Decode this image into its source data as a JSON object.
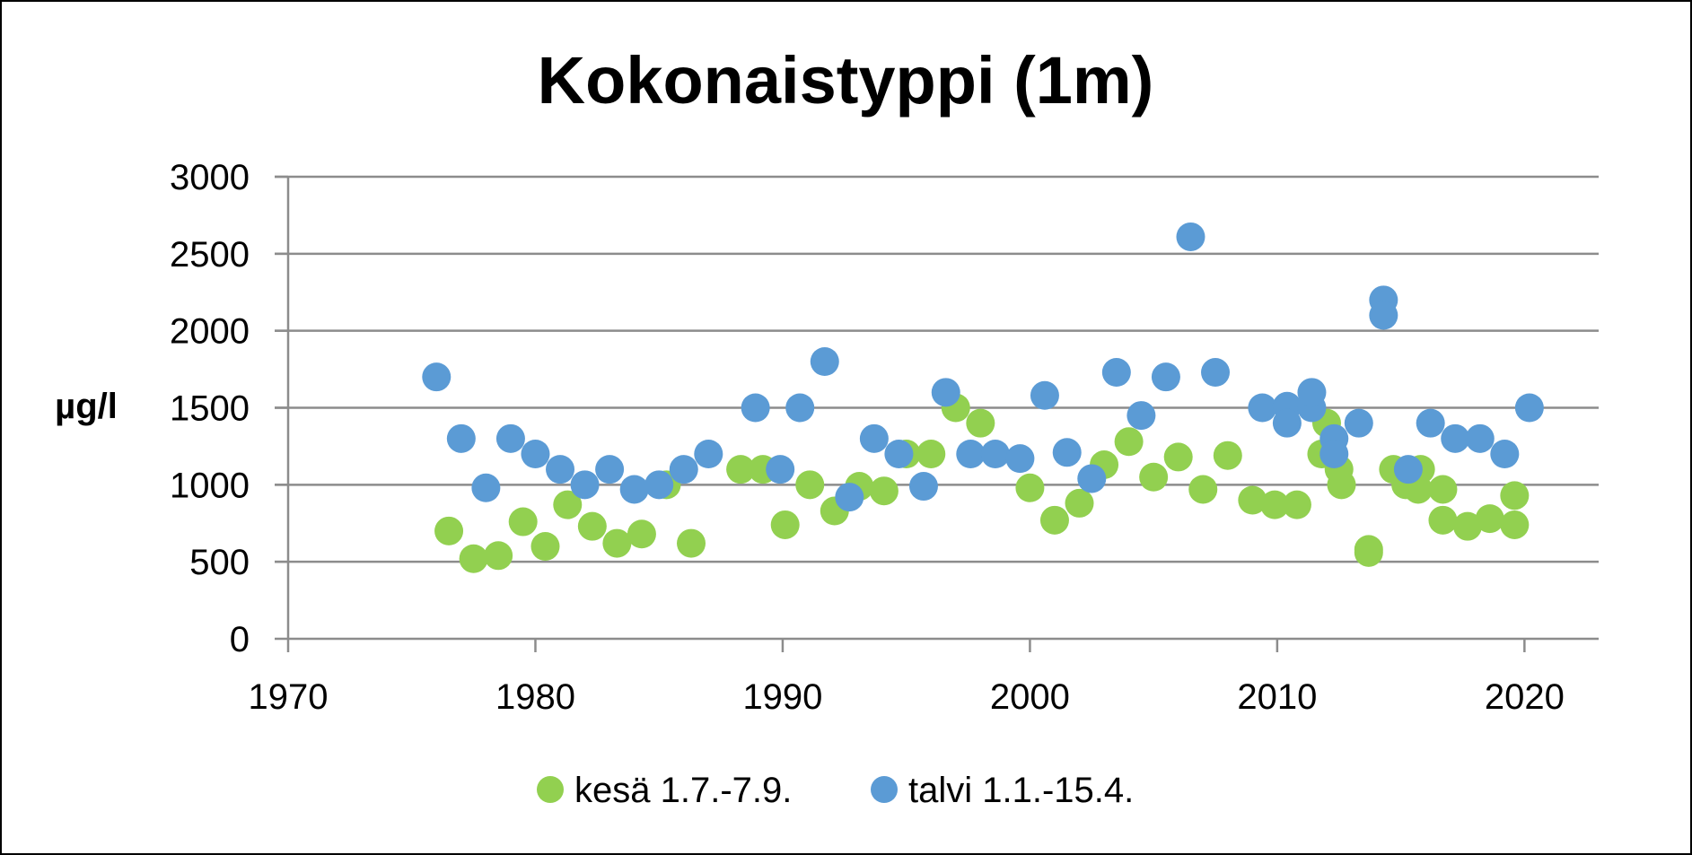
{
  "chart_data": {
    "type": "scatter",
    "title": "Kokonaistyppi (1m)",
    "xlabel": "",
    "ylabel": "µg/l",
    "xlim": [
      1970,
      2023
    ],
    "ylim": [
      0,
      3000
    ],
    "x_ticks": [
      1970,
      1980,
      1990,
      2000,
      2010,
      2020
    ],
    "y_ticks": [
      0,
      500,
      1000,
      1500,
      2000,
      2500,
      3000
    ],
    "grid": "horizontal",
    "legend_position": "bottom",
    "series": [
      {
        "name": "kesä 1.7.-7.9.",
        "color": "#92D050",
        "points": [
          [
            1976.5,
            700
          ],
          [
            1977.5,
            520
          ],
          [
            1978.5,
            540
          ],
          [
            1979.5,
            760
          ],
          [
            1980.4,
            600
          ],
          [
            1981.3,
            870
          ],
          [
            1982.3,
            730
          ],
          [
            1983.3,
            620
          ],
          [
            1984.3,
            680
          ],
          [
            1985.3,
            1000
          ],
          [
            1986.3,
            620
          ],
          [
            1988.3,
            1100
          ],
          [
            1989.2,
            1100
          ],
          [
            1990.1,
            740
          ],
          [
            1991.1,
            1000
          ],
          [
            1992.1,
            830
          ],
          [
            1993.1,
            990
          ],
          [
            1994.1,
            960
          ],
          [
            1995.0,
            1200
          ],
          [
            1996.0,
            1200
          ],
          [
            1997.0,
            1500
          ],
          [
            1998.0,
            1400
          ],
          [
            2000.0,
            980
          ],
          [
            2001.0,
            770
          ],
          [
            2002.0,
            880
          ],
          [
            2003.0,
            1130
          ],
          [
            2004.0,
            1280
          ],
          [
            2005.0,
            1050
          ],
          [
            2006.0,
            1180
          ],
          [
            2007.0,
            970
          ],
          [
            2008.0,
            1190
          ],
          [
            2009.0,
            900
          ],
          [
            2009.9,
            870
          ],
          [
            2010.8,
            870
          ],
          [
            2011.8,
            1200
          ],
          [
            2012.0,
            1400
          ],
          [
            2012.5,
            1100
          ],
          [
            2012.6,
            1000
          ],
          [
            2013.7,
            560
          ],
          [
            2013.7,
            580
          ],
          [
            2014.7,
            1100
          ],
          [
            2015.2,
            1000
          ],
          [
            2015.7,
            970
          ],
          [
            2015.8,
            1100
          ],
          [
            2016.7,
            970
          ],
          [
            2016.7,
            770
          ],
          [
            2017.7,
            730
          ],
          [
            2018.6,
            780
          ],
          [
            2019.6,
            740
          ],
          [
            2019.6,
            930
          ]
        ]
      },
      {
        "name": "talvi 1.1.-15.4.",
        "color": "#5B9BD5",
        "points": [
          [
            1976.0,
            1700
          ],
          [
            1977.0,
            1300
          ],
          [
            1978.0,
            980
          ],
          [
            1979.0,
            1300
          ],
          [
            1980.0,
            1200
          ],
          [
            1981.0,
            1100
          ],
          [
            1982.0,
            1000
          ],
          [
            1983.0,
            1100
          ],
          [
            1984.0,
            970
          ],
          [
            1985.0,
            1000
          ],
          [
            1986.0,
            1100
          ],
          [
            1987.0,
            1200
          ],
          [
            1988.9,
            1500
          ],
          [
            1989.9,
            1100
          ],
          [
            1990.7,
            1500
          ],
          [
            1991.7,
            1800
          ],
          [
            1992.7,
            920
          ],
          [
            1993.7,
            1300
          ],
          [
            1994.7,
            1200
          ],
          [
            1995.7,
            990
          ],
          [
            1996.6,
            1600
          ],
          [
            1997.6,
            1200
          ],
          [
            1998.6,
            1200
          ],
          [
            1999.6,
            1170
          ],
          [
            2000.6,
            1580
          ],
          [
            2001.5,
            1210
          ],
          [
            2002.5,
            1040
          ],
          [
            2003.5,
            1730
          ],
          [
            2004.5,
            1450
          ],
          [
            2005.5,
            1700
          ],
          [
            2006.5,
            2610
          ],
          [
            2007.5,
            1730
          ],
          [
            2009.4,
            1500
          ],
          [
            2010.4,
            1510
          ],
          [
            2010.4,
            1400
          ],
          [
            2011.4,
            1500
          ],
          [
            2011.4,
            1600
          ],
          [
            2012.3,
            1300
          ],
          [
            2012.3,
            1200
          ],
          [
            2013.3,
            1400
          ],
          [
            2014.3,
            2200
          ],
          [
            2014.3,
            2100
          ],
          [
            2015.3,
            1100
          ],
          [
            2016.2,
            1400
          ],
          [
            2017.2,
            1300
          ],
          [
            2018.2,
            1300
          ],
          [
            2019.2,
            1200
          ],
          [
            2020.2,
            1500
          ]
        ]
      }
    ]
  }
}
